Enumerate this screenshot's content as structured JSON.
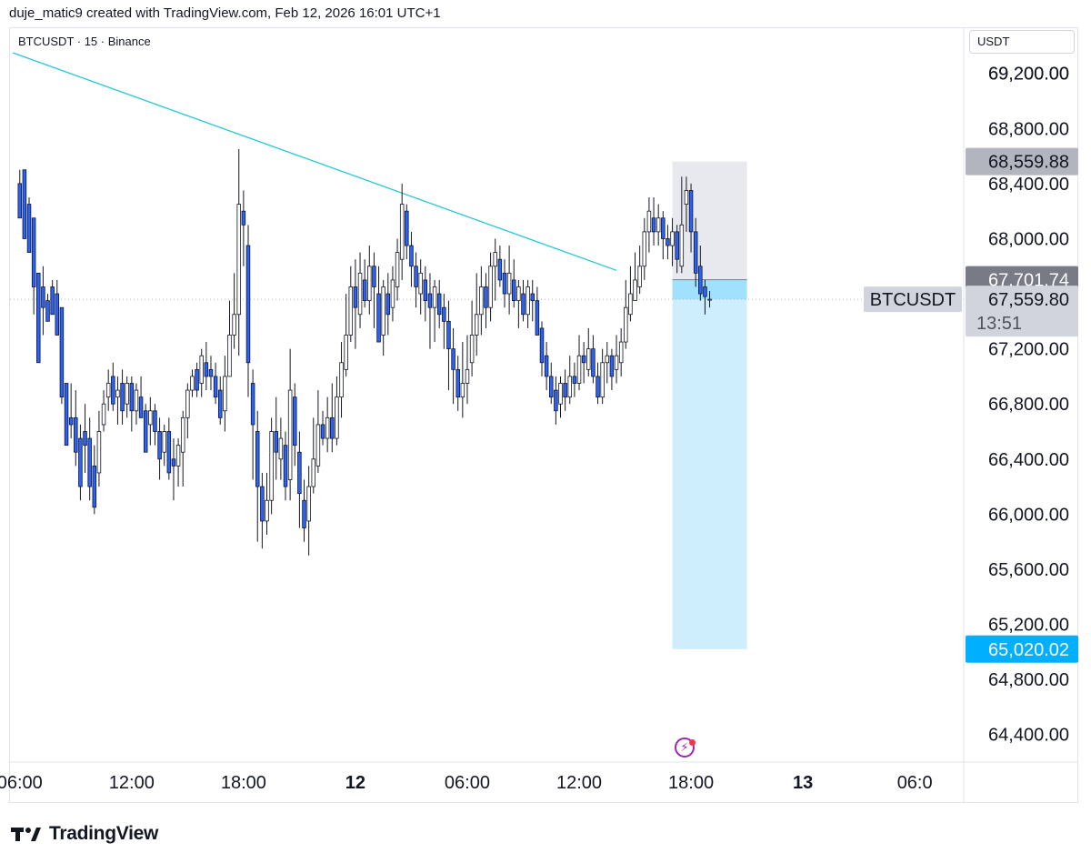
{
  "header": {
    "text": "duje_matic9 created with TradingView.com, Feb 12, 2026 16:01 UTC+1"
  },
  "symbol_label": "BTCUSDT · 15 · Binance",
  "currency": "USDT",
  "footer": {
    "brand": "TradingView",
    "logo_icon": "tradingview-logo-icon"
  },
  "colors": {
    "candle_up": "#ffffff",
    "candle_down": "#2962ff",
    "wick": "#131722",
    "trendline": "#26c6da",
    "target_zone": "#b3e5fc",
    "stop_zone": "#e6e7ec",
    "last_price_label": "#d1d4dc",
    "target_label": "#00b0ff",
    "stop_label": "#b2b5be",
    "entry_label": "#787b86"
  },
  "chart_data": {
    "type": "candlestick",
    "symbol": "BTCUSDT",
    "interval": "15",
    "exchange": "Binance",
    "ylim": [
      64200,
      69350
    ],
    "y_ticks": [
      "69,200.00",
      "68,800.00",
      "68,400.00",
      "68,000.00",
      "67,600.00",
      "67,200.00",
      "66,800.00",
      "66,400.00",
      "66,000.00",
      "65,600.00",
      "65,200.00",
      "64,800.00",
      "64,400.00"
    ],
    "x_ticks": [
      {
        "label": "06:00",
        "bold": false,
        "t": 0
      },
      {
        "label": "12:00",
        "bold": false,
        "t": 24
      },
      {
        "label": "18:00",
        "bold": false,
        "t": 48
      },
      {
        "label": "12",
        "bold": true,
        "t": 72
      },
      {
        "label": "06:00",
        "bold": false,
        "t": 96
      },
      {
        "label": "12:00",
        "bold": false,
        "t": 120
      },
      {
        "label": "18:00",
        "bold": false,
        "t": 144
      },
      {
        "label": "13",
        "bold": true,
        "t": 168
      },
      {
        "label": "06:0",
        "bold": false,
        "t": 192
      }
    ],
    "x_range": [
      -2.1,
      202.5
    ],
    "price_labels": {
      "stop": "68,559.88",
      "entry": "67,701.74",
      "last": "67,559.80",
      "countdown": "13:51",
      "symbol_tag": "BTCUSDT",
      "target": "65,020.02"
    },
    "levels": {
      "stop": 68559.88,
      "entry": 67701.74,
      "last": 67559.8,
      "target": 65020.02
    },
    "position": {
      "t_start": 140,
      "t_end": 156
    },
    "trendline": [
      [
        -1.5,
        69350
      ],
      [
        128,
        67770
      ]
    ],
    "candles": [
      [
        67900,
        68400,
        68150,
        68500,
        68350
      ],
      [
        68350,
        68500,
        68000,
        68300,
        68100
      ],
      [
        68100,
        68250,
        67900,
        68300,
        68100
      ],
      [
        68100,
        68150,
        67650,
        67950,
        67450
      ],
      [
        67450,
        67750,
        67100,
        67500,
        67400
      ],
      [
        67400,
        67650,
        67500,
        67800,
        67300
      ],
      [
        67300,
        67550,
        67400,
        67600,
        67400
      ],
      [
        67400,
        67650,
        67450,
        67700,
        67550
      ],
      [
        67550,
        67600,
        67300,
        67700,
        67300
      ],
      [
        67300,
        67500,
        66850,
        67100,
        66800
      ],
      [
        66800,
        66950,
        66500,
        66850,
        66500
      ],
      [
        66500,
        66700,
        66650,
        66950,
        66550
      ],
      [
        66550,
        66700,
        66450,
        66900,
        66350
      ],
      [
        66350,
        66550,
        66200,
        66650,
        66100
      ],
      [
        66100,
        66600,
        66500,
        66800,
        66300
      ],
      [
        66300,
        66550,
        66200,
        66700,
        66100
      ],
      [
        66100,
        66350,
        66050,
        66500,
        66000
      ],
      [
        66000,
        66300,
        66600,
        66750,
        66200
      ],
      [
        66200,
        66650,
        66800,
        66900,
        66600
      ],
      [
        66600,
        66850,
        66950,
        67050,
        66750
      ],
      [
        66750,
        67000,
        66800,
        67100,
        66750
      ],
      [
        66750,
        66850,
        66900,
        67000,
        66650
      ],
      [
        66650,
        66950,
        66750,
        67050,
        66650
      ],
      [
        66650,
        66800,
        66950,
        67000,
        66700
      ],
      [
        66700,
        66950,
        66750,
        67000,
        66600
      ],
      [
        66600,
        66750,
        66900,
        66950,
        66650
      ],
      [
        66650,
        66850,
        66700,
        67000,
        66700
      ],
      [
        66700,
        66750,
        66450,
        66800,
        66550
      ],
      [
        66550,
        66650,
        66750,
        66850,
        66500
      ],
      [
        66500,
        66750,
        66600,
        66800,
        66500
      ],
      [
        66500,
        66600,
        66400,
        66700,
        66250
      ],
      [
        66250,
        66450,
        66600,
        66650,
        66350
      ],
      [
        66350,
        66600,
        66300,
        66700,
        66250
      ],
      [
        66250,
        66400,
        66350,
        66550,
        66100
      ],
      [
        66100,
        66350,
        66500,
        66550,
        66200
      ],
      [
        66200,
        66450,
        66700,
        66750,
        66200
      ],
      [
        66200,
        66700,
        66900,
        66950,
        66550
      ],
      [
        66550,
        66900,
        67000,
        67050,
        66850
      ],
      [
        66850,
        67050,
        66900,
        67100,
        66850
      ],
      [
        66850,
        66950,
        67150,
        67200,
        66850
      ],
      [
        66850,
        67100,
        67000,
        67250,
        66900
      ],
      [
        66900,
        67050,
        67000,
        67150,
        66900
      ],
      [
        66900,
        67000,
        66850,
        67100,
        66800
      ],
      [
        66800,
        66900,
        66700,
        67000,
        66650
      ],
      [
        66650,
        66750,
        67000,
        67150,
        66600
      ],
      [
        66600,
        67000,
        67300,
        67550,
        67000
      ],
      [
        67000,
        67300,
        67450,
        67750,
        67200
      ],
      [
        67200,
        67450,
        68250,
        68650,
        67150
      ],
      [
        67150,
        68200,
        68100,
        68350,
        67800
      ],
      [
        67800,
        67950,
        67100,
        68100,
        66850
      ],
      [
        66850,
        66950,
        66650,
        67050,
        66250
      ],
      [
        66250,
        66600,
        66200,
        66750,
        65800
      ],
      [
        65800,
        66200,
        65950,
        66300,
        65750
      ],
      [
        65750,
        65950,
        66100,
        66300,
        65850
      ],
      [
        65850,
        66100,
        66600,
        66700,
        66000
      ],
      [
        66000,
        66600,
        66450,
        66850,
        66250
      ],
      [
        66250,
        66400,
        66550,
        66700,
        66250
      ],
      [
        66250,
        66500,
        66200,
        66600,
        66100
      ],
      [
        66100,
        66250,
        66900,
        67200,
        66100
      ],
      [
        66100,
        66850,
        66500,
        66950,
        66350
      ],
      [
        66350,
        66450,
        66150,
        66600,
        65900
      ],
      [
        65900,
        66100,
        65900,
        66250,
        65800
      ],
      [
        65800,
        65950,
        66200,
        66350,
        65700
      ],
      [
        65700,
        66200,
        66400,
        66700,
        66150
      ],
      [
        66150,
        66350,
        66650,
        66900,
        66300
      ],
      [
        66300,
        66650,
        66550,
        66750,
        66500
      ],
      [
        66500,
        66550,
        66700,
        66850,
        66450
      ],
      [
        66450,
        66700,
        66550,
        66950,
        66450
      ],
      [
        66450,
        66550,
        66850,
        67000,
        66500
      ],
      [
        66500,
        66850,
        67100,
        67250,
        66700
      ],
      [
        66700,
        67050,
        67300,
        67600,
        67000
      ],
      [
        67000,
        67300,
        67650,
        67800,
        67250
      ],
      [
        67250,
        67650,
        67500,
        67850,
        67200
      ],
      [
        67200,
        67450,
        67750,
        67900,
        67350
      ],
      [
        67350,
        67700,
        67550,
        67850,
        67500
      ],
      [
        67500,
        67550,
        67800,
        67950,
        67450
      ],
      [
        67450,
        67800,
        67650,
        67900,
        67350
      ],
      [
        67350,
        67600,
        67250,
        67800,
        67250
      ],
      [
        67250,
        67300,
        67650,
        67700,
        67150
      ],
      [
        67150,
        67600,
        67450,
        67750,
        67300
      ],
      [
        67300,
        67500,
        67700,
        67800,
        67400
      ],
      [
        67400,
        67650,
        67900,
        68000,
        67550
      ],
      [
        67550,
        67850,
        68250,
        68400,
        67700
      ],
      [
        67700,
        68200,
        67950,
        68250,
        67850
      ],
      [
        67850,
        67950,
        67800,
        68050,
        67650
      ],
      [
        67650,
        67800,
        67650,
        67900,
        67500
      ],
      [
        67500,
        67600,
        67750,
        67850,
        67450
      ],
      [
        67450,
        67700,
        67550,
        67800,
        67400
      ],
      [
        67400,
        67600,
        67500,
        67750,
        67200
      ],
      [
        67200,
        67500,
        67650,
        67700,
        67250
      ],
      [
        67250,
        67600,
        67450,
        67700,
        67350
      ],
      [
        67350,
        67500,
        67400,
        67600,
        67200
      ],
      [
        67200,
        67400,
        67200,
        67550,
        66900
      ],
      [
        66900,
        67200,
        67050,
        67350,
        66800
      ],
      [
        66800,
        67050,
        66850,
        67150,
        66750
      ],
      [
        66750,
        66850,
        66950,
        67250,
        66700
      ],
      [
        66700,
        66950,
        67050,
        67300,
        66800
      ],
      [
        66800,
        67100,
        67300,
        67550,
        67000
      ],
      [
        67000,
        67300,
        67450,
        67750,
        67150
      ],
      [
        67150,
        67450,
        67650,
        67800,
        67300
      ],
      [
        67300,
        67650,
        67500,
        67750,
        67350
      ],
      [
        67350,
        67500,
        67800,
        67900,
        67400
      ],
      [
        67400,
        67800,
        67900,
        68000,
        67550
      ],
      [
        67550,
        67850,
        67700,
        67950,
        67650
      ],
      [
        67650,
        67750,
        67600,
        67850,
        67500
      ],
      [
        67500,
        67600,
        67750,
        67950,
        67450
      ],
      [
        67450,
        67700,
        67550,
        67850,
        67500
      ],
      [
        67500,
        67550,
        67650,
        67700,
        67350
      ],
      [
        67350,
        67600,
        67450,
        67700,
        67400
      ],
      [
        67400,
        67450,
        67650,
        67700,
        67350
      ],
      [
        67350,
        67600,
        67550,
        67700,
        67400
      ],
      [
        67400,
        67550,
        67300,
        67650,
        67300
      ],
      [
        67300,
        67350,
        67100,
        67400,
        67000
      ],
      [
        67000,
        67150,
        67000,
        67250,
        66900
      ],
      [
        66900,
        67000,
        66850,
        67100,
        66800
      ],
      [
        66800,
        66900,
        66750,
        67000,
        66650
      ],
      [
        66650,
        66800,
        66950,
        67000,
        66700
      ],
      [
        66700,
        66950,
        66850,
        67050,
        66750
      ],
      [
        66750,
        66850,
        67000,
        67150,
        66800
      ],
      [
        66800,
        67000,
        66950,
        67100,
        66850
      ],
      [
        66850,
        66950,
        67150,
        67300,
        66900
      ],
      [
        66900,
        67150,
        67100,
        67250,
        66950
      ],
      [
        66950,
        67050,
        67200,
        67350,
        67000
      ],
      [
        67000,
        67200,
        67000,
        67300,
        66950
      ],
      [
        66950,
        67000,
        66850,
        67100,
        66800
      ],
      [
        66800,
        66850,
        67100,
        67200,
        66800
      ],
      [
        66800,
        67100,
        67150,
        67250,
        66950
      ],
      [
        66950,
        67150,
        67000,
        67200,
        66900
      ],
      [
        66900,
        67050,
        67150,
        67300,
        66950
      ],
      [
        66950,
        67100,
        67250,
        67350,
        67000
      ],
      [
        67000,
        67250,
        67500,
        67700,
        67200
      ],
      [
        67200,
        67450,
        67600,
        67800,
        67400
      ],
      [
        67400,
        67550,
        67700,
        67900,
        67550
      ],
      [
        67550,
        67650,
        67800,
        67950,
        67600
      ],
      [
        67600,
        67800,
        68050,
        68150,
        67700
      ],
      [
        67700,
        68050,
        68200,
        68300,
        67900
      ],
      [
        67900,
        68150,
        68050,
        68300,
        67950
      ],
      [
        67950,
        68050,
        68150,
        68250,
        67950
      ],
      [
        67950,
        68150,
        68000,
        68200,
        67850
      ],
      [
        67850,
        68000,
        67950,
        68100,
        67850
      ],
      [
        67850,
        67950,
        68050,
        68150,
        67800
      ],
      [
        67800,
        68050,
        67850,
        68100,
        67750
      ],
      [
        67750,
        67800,
        68100,
        68450,
        67750
      ],
      [
        67750,
        68250,
        68350,
        68450,
        68050
      ],
      [
        68050,
        68350,
        68050,
        68400,
        67900
      ],
      [
        67900,
        68050,
        67750,
        68150,
        67650
      ],
      [
        67650,
        67800,
        67600,
        67950,
        67550
      ],
      [
        67550,
        67650,
        67580,
        67700,
        67450
      ],
      [
        67450,
        67560,
        67560,
        67620,
        67500
      ]
    ]
  }
}
